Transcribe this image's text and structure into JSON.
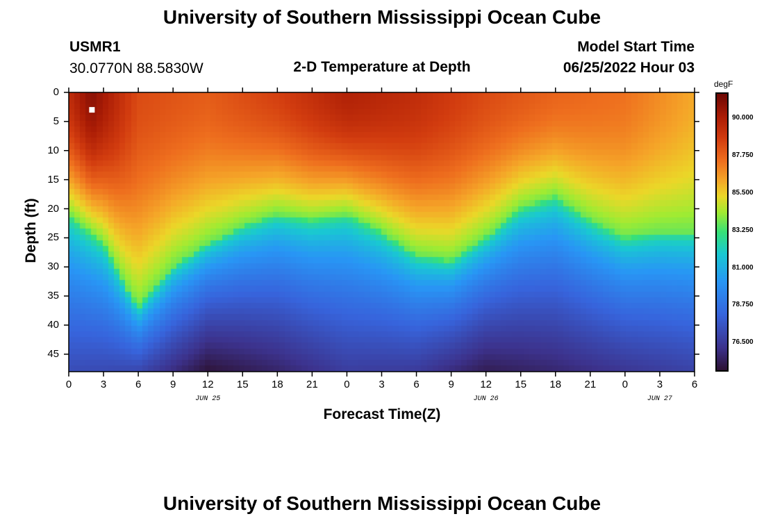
{
  "header": {
    "title": "University of Southern Mississippi Ocean Cube",
    "station_id": "USMR1",
    "coordinates": "30.0770N  88.5830W",
    "chart_title": "2-D Temperature at Depth",
    "model_start_label": "Model Start Time",
    "model_start_value": "06/25/2022 Hour 03"
  },
  "footer": {
    "title": "University of Southern Mississippi Ocean Cube"
  },
  "chart_data": {
    "type": "heatmap",
    "title": "2-D Temperature at Depth",
    "xlabel": "Forecast Time(Z)",
    "ylabel": "Depth (ft)",
    "x_range_hours": [
      0,
      54
    ],
    "y_range_ft": [
      0,
      48
    ],
    "x_tick_labels": [
      "0",
      "3",
      "6",
      "9",
      "12",
      "15",
      "18",
      "21",
      "0",
      "3",
      "6",
      "9",
      "12",
      "15",
      "18",
      "21",
      "0",
      "3",
      "6"
    ],
    "y_ticks": [
      0,
      5,
      10,
      15,
      20,
      25,
      30,
      35,
      40,
      45
    ],
    "date_labels": [
      {
        "label": "JUN 25",
        "hour": 12
      },
      {
        "label": "JUN 26",
        "hour": 36
      },
      {
        "label": "JUN 27",
        "hour": 51
      }
    ],
    "colorbar": {
      "unit": "degF",
      "range": [
        74.8,
        91.6
      ],
      "ticks": [
        "90.000",
        "87.750",
        "85.500",
        "83.250",
        "81.000",
        "78.750",
        "76.500"
      ],
      "tick_values": [
        90.0,
        87.75,
        85.5,
        83.25,
        81.0,
        78.75,
        76.5
      ]
    },
    "thermocline_depth_ft": [
      {
        "hour": 0,
        "depth": 21
      },
      {
        "hour": 3,
        "depth": 26
      },
      {
        "hour": 6,
        "depth": 37
      },
      {
        "hour": 9,
        "depth": 30
      },
      {
        "hour": 12,
        "depth": 26
      },
      {
        "hour": 15,
        "depth": 23
      },
      {
        "hour": 18,
        "depth": 21
      },
      {
        "hour": 21,
        "depth": 22
      },
      {
        "hour": 24,
        "depth": 21
      },
      {
        "hour": 27,
        "depth": 24
      },
      {
        "hour": 30,
        "depth": 28
      },
      {
        "hour": 33,
        "depth": 29
      },
      {
        "hour": 36,
        "depth": 25
      },
      {
        "hour": 39,
        "depth": 20
      },
      {
        "hour": 42,
        "depth": 18
      },
      {
        "hour": 45,
        "depth": 22
      },
      {
        "hour": 48,
        "depth": 25
      },
      {
        "hour": 51,
        "depth": 24
      },
      {
        "hour": 54,
        "depth": 24
      }
    ],
    "surface_temp_degF": [
      {
        "hour": 0,
        "value": 89.5
      },
      {
        "hour": 2,
        "value": 91.0
      },
      {
        "hour": 6,
        "value": 88.5
      },
      {
        "hour": 12,
        "value": 88.0
      },
      {
        "hour": 18,
        "value": 88.8
      },
      {
        "hour": 24,
        "value": 90.0
      },
      {
        "hour": 30,
        "value": 89.5
      },
      {
        "hour": 36,
        "value": 88.5
      },
      {
        "hour": 42,
        "value": 87.8
      },
      {
        "hour": 48,
        "value": 87.5
      },
      {
        "hour": 54,
        "value": 86.3
      }
    ],
    "bottom_temp_degF": [
      {
        "hour": 0,
        "value": 77.2
      },
      {
        "hour": 6,
        "value": 77.0
      },
      {
        "hour": 12,
        "value": 74.9
      },
      {
        "hour": 18,
        "value": 75.6
      },
      {
        "hour": 24,
        "value": 76.6
      },
      {
        "hour": 30,
        "value": 76.5
      },
      {
        "hour": 36,
        "value": 75.3
      },
      {
        "hour": 42,
        "value": 75.7
      },
      {
        "hour": 48,
        "value": 76.3
      },
      {
        "hour": 54,
        "value": 76.8
      }
    ],
    "marker": {
      "hour": 2,
      "depth": 3
    }
  }
}
